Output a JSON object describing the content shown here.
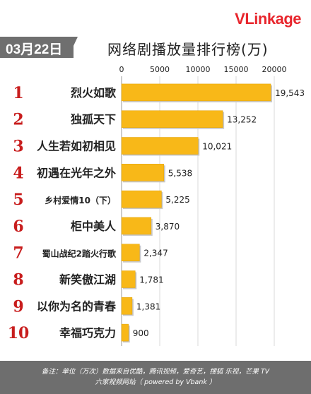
{
  "brand": {
    "logo_v": "V",
    "logo_rest": "Linkage"
  },
  "header": {
    "date": "03月22日",
    "title": "网络剧播放量排行榜(万)"
  },
  "chart_data": {
    "type": "bar",
    "orientation": "horizontal",
    "title": "网络剧播放量排行榜(万)",
    "xlim": [
      0,
      20000
    ],
    "xticks": [
      "0",
      "5000",
      "10000",
      "15000",
      "20000"
    ],
    "grid": true,
    "bar_color": "#f8b818",
    "rank_color": "#c81d1d",
    "ranks": [
      "1",
      "2",
      "3",
      "4",
      "5",
      "6",
      "7",
      "8",
      "9",
      "10"
    ],
    "categories": [
      "烈火如歌",
      "独孤天下",
      "人生若如初相见",
      "初遇在光年之外",
      "乡村爱情10（下）",
      "柜中美人",
      "蜀山战纪2踏火行歌",
      "新笑傲江湖",
      "以你为名的青春",
      "幸福巧克力"
    ],
    "values": [
      19543,
      13252,
      10021,
      5538,
      5225,
      3870,
      2347,
      1781,
      1381,
      900
    ],
    "value_labels": [
      "19,543",
      "13,252",
      "10,021",
      "5,538",
      "5,225",
      "3,870",
      "2,347",
      "1,781",
      "1,381",
      "900"
    ]
  },
  "footer": {
    "line1": "备注：单位（万次）数据来自优酷，腾讯视频，爱奇艺，搜狐 乐视，芒果 TV",
    "line2": "六家视频网站（ powered by Vbank ）"
  }
}
